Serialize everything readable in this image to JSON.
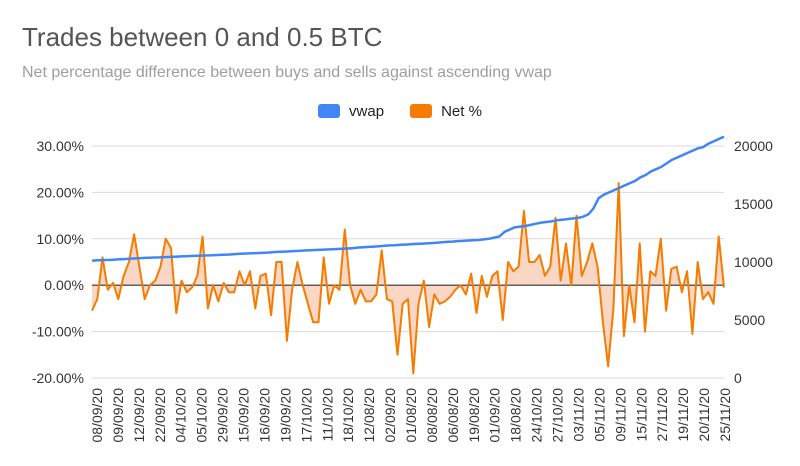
{
  "chart_data": {
    "type": "line",
    "title": "Trades between 0 and 0.5 BTC",
    "subtitle": "Net percentage difference between buys and sells against ascending vwap",
    "xlabel": "",
    "ylabel": "",
    "legend_position": "top",
    "grid": true,
    "colors": {
      "vwap": "#4285f4",
      "net": "#f57c00",
      "net_fill": "#f8c8b0",
      "grid": "#d9d9d9",
      "zero_line": "#333333",
      "text": "#333333"
    },
    "y_left": {
      "range": [
        -20,
        30
      ],
      "ticks": [
        "30.00%",
        "20.00%",
        "10.00%",
        "0.00%",
        "-10.00%",
        "-20.00%"
      ]
    },
    "y_right": {
      "range": [
        0,
        20000
      ],
      "ticks": [
        "20000",
        "15000",
        "10000",
        "5000",
        "0"
      ]
    },
    "x_ticks": [
      "08/09/20",
      "09/09/20",
      "12/09/20",
      "22/09/20",
      "04/10/20",
      "05/10/20",
      "29/09/20",
      "15/09/20",
      "16/09/20",
      "19/09/20",
      "17/10/20",
      "11/10/20",
      "18/10/20",
      "12/08/20",
      "02/09/20",
      "01/08/20",
      "08/08/20",
      "06/08/20",
      "19/08/20",
      "01/09/20",
      "18/08/20",
      "24/10/20",
      "27/10/20",
      "03/11/20",
      "05/11/20",
      "09/11/20",
      "15/11/20",
      "27/11/20",
      "19/11/20",
      "20/11/20",
      "25/11/20"
    ],
    "series": [
      {
        "name": "vwap",
        "axis": "right",
        "values": [
          10100,
          10150,
          10160,
          10170,
          10190,
          10220,
          10250,
          10280,
          10300,
          10330,
          10350,
          10370,
          10390,
          10400,
          10420,
          10440,
          10460,
          10480,
          10500,
          10520,
          10540,
          10550,
          10570,
          10580,
          10600,
          10620,
          10640,
          10670,
          10700,
          10720,
          10740,
          10760,
          10780,
          10800,
          10820,
          10860,
          10880,
          10900,
          10920,
          10950,
          10970,
          11000,
          11020,
          11040,
          11060,
          11080,
          11100,
          11120,
          11140,
          11160,
          11200,
          11250,
          11280,
          11300,
          11330,
          11360,
          11400,
          11430,
          11450,
          11480,
          11500,
          11530,
          11560,
          11580,
          11600,
          11630,
          11660,
          11700,
          11730,
          11760,
          11800,
          11820,
          11850,
          11880,
          11900,
          11950,
          12000,
          12100,
          12200,
          12600,
          12800,
          13000,
          13050,
          13100,
          13200,
          13300,
          13400,
          13450,
          13500,
          13600,
          13650,
          13700,
          13750,
          13800,
          13900,
          14100,
          14600,
          15500,
          15800,
          16000,
          16200,
          16400,
          16600,
          16800,
          17000,
          17300,
          17500,
          17800,
          18000,
          18200,
          18500,
          18800,
          19000,
          19200,
          19400,
          19600,
          19800,
          19900,
          20200,
          20400,
          20600,
          20800
        ]
      },
      {
        "name": "Net %",
        "axis": "left",
        "values": [
          -5.5,
          -3.0,
          6.0,
          -1.0,
          0.5,
          -3.0,
          2.0,
          5.0,
          11.0,
          4.0,
          -3.0,
          0.0,
          1.0,
          4.0,
          10.0,
          8.0,
          -6.0,
          1.0,
          -1.5,
          -0.5,
          2.0,
          10.5,
          -5.0,
          0.0,
          -3.5,
          0.5,
          -1.5,
          -1.5,
          3.0,
          0.0,
          3.0,
          -5.0,
          2.0,
          2.5,
          -6.5,
          5.0,
          5.0,
          -12.0,
          -1.0,
          5.0,
          0.0,
          -4.0,
          -8.0,
          -8.0,
          6.0,
          -4.0,
          0.0,
          -1.0,
          12.0,
          0.0,
          -4.0,
          -1.0,
          -3.5,
          -3.5,
          -2.0,
          7.5,
          -3.0,
          -3.5,
          -15.0,
          -4.0,
          -3.0,
          -19.0,
          -4.0,
          1.0,
          -9.0,
          -2.0,
          -4.0,
          -3.5,
          -2.5,
          -1.0,
          0.0,
          -2.0,
          2.5,
          -6.0,
          2.0,
          -2.5,
          2.0,
          3.0,
          -7.5,
          5.0,
          3.0,
          4.0,
          16.0,
          5.0,
          5.0,
          6.5,
          2.0,
          4.0,
          14.5,
          1.0,
          9.0,
          0.0,
          15.0,
          2.0,
          5.0,
          9.0,
          4.0,
          -8.0,
          -17.5,
          -5.0,
          22.0,
          -11.0,
          0.0,
          -8.0,
          9.0,
          -10.0,
          3.0,
          2.0,
          10.0,
          -5.5,
          3.5,
          4.0,
          -1.5,
          3.0,
          -10.5,
          5.0,
          -3.0,
          -1.5,
          -4.0,
          10.5,
          -0.5
        ]
      }
    ]
  }
}
